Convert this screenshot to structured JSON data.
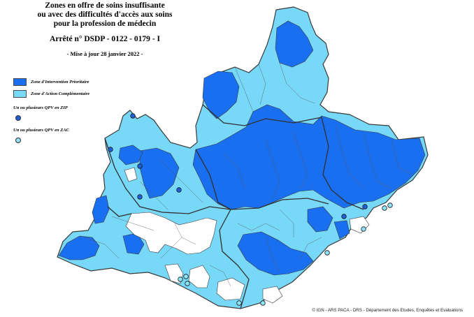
{
  "title": {
    "line1": "Zones en offre de soins insuffisante",
    "line2": "ou avec des difficultés d'accès aux soins",
    "line3": "pour la profession de médecin",
    "decree": "Arrêté n° DSDP - 0122 - 0179 - I",
    "update": "- Mise à jour 28 janvier 2022 -"
  },
  "legend": {
    "zip_label": "Zone d'Intervention Prioritaire",
    "zac_label": "Zone d'Action Complémentaire",
    "qpv_zip_label": "Un ou plusieurs QPV en ZIP",
    "qpv_zac_label": "Un ou plusieurs QPV en ZAC"
  },
  "colors": {
    "zip": "#1a6ff0",
    "zac": "#78d8f8",
    "other": "#ffffff",
    "border": "#3a3a3a",
    "qpv_zip_dot": "#1f62d8",
    "qpv_zac_dot": "#8ee3f9"
  },
  "credit": "© IGN - ARS PACA - DRS - Département des Etudes, Enquêtes et Evaluations"
}
